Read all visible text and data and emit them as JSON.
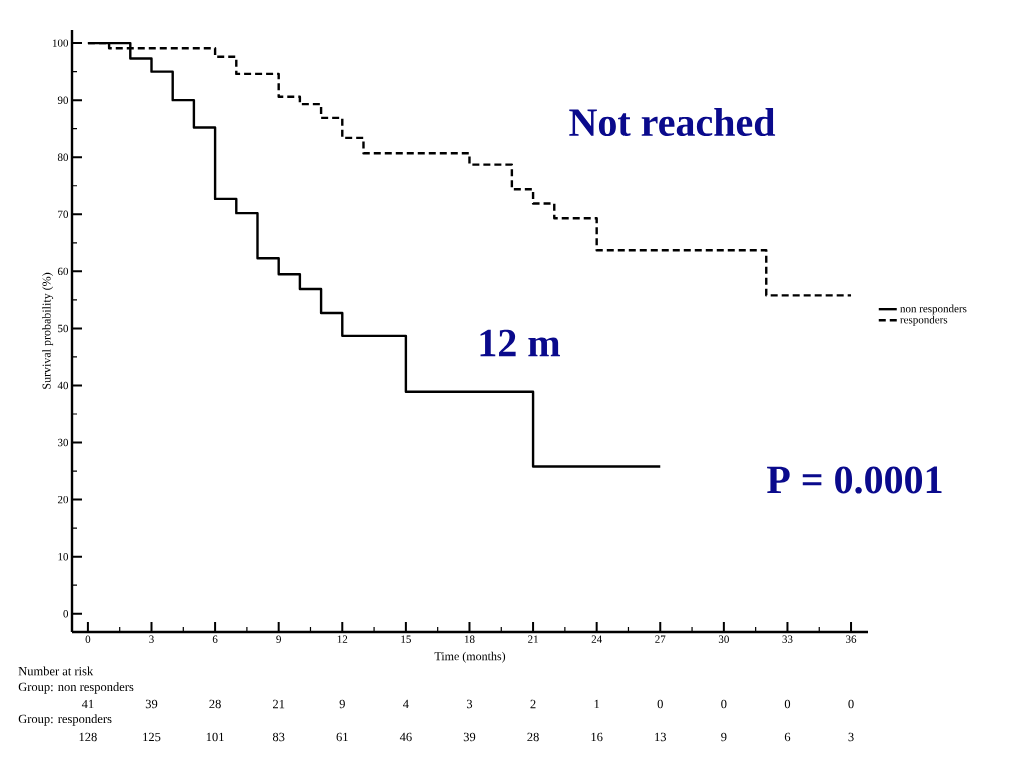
{
  "chart_data": {
    "type": "step",
    "xlabel": "Time (months)",
    "ylabel": "Survival probability (%)",
    "xlim": [
      -0.75,
      36.8
    ],
    "ylim": [
      -3.2,
      102.3
    ],
    "xticks": [
      0,
      3,
      6,
      9,
      12,
      15,
      18,
      21,
      24,
      27,
      30,
      33,
      36
    ],
    "yticks": [
      0,
      10,
      20,
      30,
      40,
      50,
      60,
      70,
      80,
      90,
      100
    ],
    "legend": "right",
    "grid": false,
    "series": [
      {
        "name": "non responders",
        "color": "#000000",
        "line_style": "solid",
        "x": [
          0,
          2,
          3,
          4,
          5,
          6,
          7,
          8,
          9,
          10,
          11,
          12,
          15,
          21,
          27
        ],
        "values": [
          100,
          97.3,
          95.0,
          90.0,
          85.2,
          72.7,
          70.2,
          62.3,
          59.5,
          56.9,
          52.7,
          48.7,
          38.9,
          25.8,
          25.8
        ]
      },
      {
        "name": "responders",
        "color": "#000000",
        "line_style": "dashed",
        "x": [
          0,
          1,
          6,
          7,
          9,
          10,
          11,
          12,
          13,
          18,
          20,
          21,
          22,
          24,
          32,
          36
        ],
        "values": [
          100,
          99.1,
          97.6,
          94.6,
          90.6,
          89.3,
          86.9,
          83.4,
          80.7,
          78.7,
          74.4,
          71.9,
          69.3,
          63.7,
          55.8,
          55.8
        ]
      }
    ],
    "annotations": [
      "Number at risk",
      "Group: non responders",
      "41",
      "39",
      "28",
      "21",
      "9",
      "4",
      "3",
      "2",
      "1",
      "0",
      "0",
      "0",
      "0",
      "Group: responders",
      "128",
      "125",
      "101",
      "83",
      "61",
      "46",
      "39",
      "28",
      "16",
      "13",
      "9",
      "6",
      "3",
      "Not reached",
      "12 m",
      "P = 0.0001"
    ]
  }
}
